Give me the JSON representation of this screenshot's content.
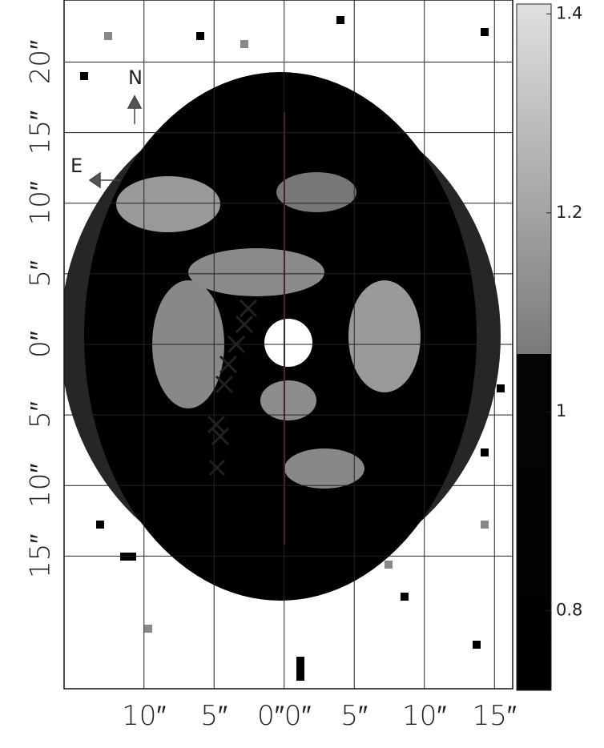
{
  "chart_data": {
    "type": "image",
    "xlim": [
      -15.7,
      16.3
    ],
    "ylim": [
      -24.4,
      24.4
    ],
    "xticks": [
      {
        "value": -10,
        "label": "10″"
      },
      {
        "value": -5,
        "label": "5″"
      },
      {
        "value": 0,
        "label": "0″0″"
      },
      {
        "value": 5,
        "label": "5″"
      },
      {
        "value": 10,
        "label": "10″"
      },
      {
        "value": 15,
        "label": "15″"
      }
    ],
    "yticks": [
      {
        "value": 20,
        "label": "20″"
      },
      {
        "value": 15,
        "label": "15″"
      },
      {
        "value": 10,
        "label": "10″"
      },
      {
        "value": 5,
        "label": "5″"
      },
      {
        "value": 0,
        "label": "0″"
      },
      {
        "value": -5,
        "label": "5″"
      },
      {
        "value": -10,
        "label": "10″"
      },
      {
        "value": -15,
        "label": "15″"
      }
    ],
    "grid": true,
    "colorbar": {
      "clim": [
        0.72,
        1.41
      ],
      "ticks": [
        1.4,
        1.2,
        1,
        0.8
      ]
    },
    "compass": {
      "north": "N",
      "east": "E"
    }
  }
}
